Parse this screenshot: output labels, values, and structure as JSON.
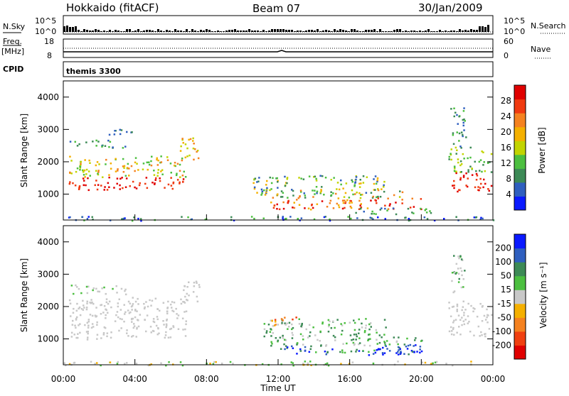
{
  "header": {
    "title": "Hokkaido (fitACF)",
    "beam": "Beam 07",
    "date": "30/Jan/2009"
  },
  "strip_labels": {
    "n_sky": "N.Sky",
    "n_search": "N.Search",
    "freq": "Freq.",
    "freq_unit": "[MHz]",
    "nave": "Nave",
    "cpid": "CPID",
    "cpid_value": "themis 3300",
    "nsky_tick_top": "10^5",
    "nsky_tick_bottom": "10^0",
    "nsearch_tick_top": "10^5",
    "nsearch_tick_bottom": "10^0",
    "freq_tick_top": "18",
    "freq_tick_bottom": "8",
    "nave_tick_top": "60",
    "nave_tick_bottom": "0"
  },
  "colors": {
    "power": [
      "#0a1aff",
      "#2f5fbf",
      "#3d8a56",
      "#4cbf40",
      "#c2d400",
      "#f4b000",
      "#f58220",
      "#f03a10",
      "#e00000"
    ],
    "velocity": [
      "#e00000",
      "#f04010",
      "#f58220",
      "#f5b000",
      "#c8c8c8",
      "#4cbf40",
      "#3d8a56",
      "#2f5fbf",
      "#0a1aff"
    ],
    "ground_scatter": "#c8c8c8"
  },
  "chart_data": [
    {
      "type": "heatmap",
      "name": "power",
      "xlabel": "",
      "ylabel": "Slant Range [km]",
      "x_ticks": [
        "00:00",
        "04:00",
        "08:00",
        "12:00",
        "16:00",
        "20:00",
        "00:00"
      ],
      "y_ticks": [
        "1000",
        "2000",
        "3000",
        "4000"
      ],
      "xlim": [
        0,
        24
      ],
      "ylim": [
        200,
        4500
      ],
      "colorbar_label": "Power [dB]",
      "colorbar_ticks": [
        "4",
        "8",
        "12",
        "16",
        "20",
        "24",
        "28"
      ],
      "colorbar_range": [
        0,
        30
      ]
    },
    {
      "type": "heatmap",
      "name": "velocity",
      "xlabel": "Time UT",
      "ylabel": "Slant Range [km]",
      "x_ticks": [
        "00:00",
        "04:00",
        "08:00",
        "12:00",
        "16:00",
        "20:00",
        "00:00"
      ],
      "y_ticks": [
        "1000",
        "2000",
        "3000",
        "4000"
      ],
      "xlim": [
        0,
        24
      ],
      "ylim": [
        200,
        4500
      ],
      "colorbar_label": "Velocity [m s⁻¹]",
      "colorbar_ticks": [
        "200",
        "100",
        "50",
        "15",
        "-15",
        "-50",
        "-100",
        "-200"
      ],
      "colorbar_range": [
        -250,
        250
      ]
    }
  ]
}
